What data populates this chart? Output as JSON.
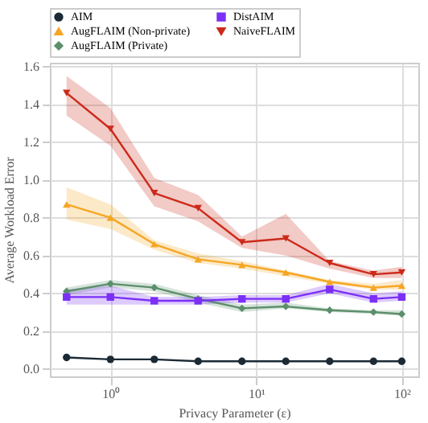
{
  "chart_data": {
    "type": "line",
    "xlabel": "Privacy Parameter (ε)",
    "ylabel": "Average Workload Error",
    "x": [
      0.5,
      1,
      2,
      4,
      8,
      16,
      32,
      64,
      100
    ],
    "series": [
      {
        "name": "AIM",
        "color": "#1b2a35",
        "marker": "circle",
        "values": [
          0.06,
          0.05,
          0.05,
          0.04,
          0.04,
          0.04,
          0.04,
          0.04,
          0.04
        ]
      },
      {
        "name": "AugFLAIM (Non-private)",
        "color": "#f5a623",
        "marker": "triangle",
        "values": [
          0.87,
          0.8,
          0.66,
          0.58,
          0.55,
          0.51,
          0.46,
          0.43,
          0.44
        ],
        "lower": [
          0.79,
          0.74,
          0.63,
          0.56,
          0.53,
          0.49,
          0.45,
          0.42,
          0.42
        ],
        "upper": [
          0.96,
          0.87,
          0.68,
          0.61,
          0.57,
          0.52,
          0.47,
          0.45,
          0.47
        ]
      },
      {
        "name": "AugFLAIM (Private)",
        "color": "#5b8f6b",
        "marker": "diamond",
        "values": [
          0.41,
          0.45,
          0.43,
          0.37,
          0.32,
          0.33,
          0.31,
          0.3,
          0.29
        ],
        "lower": [
          0.39,
          0.43,
          0.41,
          0.35,
          0.3,
          0.32,
          0.3,
          0.29,
          0.28
        ],
        "upper": [
          0.43,
          0.47,
          0.45,
          0.39,
          0.34,
          0.35,
          0.32,
          0.31,
          0.31
        ]
      },
      {
        "name": "DistAIM",
        "color": "#7b2ff7",
        "marker": "square",
        "values": [
          0.38,
          0.38,
          0.36,
          0.36,
          0.37,
          0.37,
          0.42,
          0.37,
          0.38
        ],
        "lower": [
          0.34,
          0.34,
          0.34,
          0.34,
          0.35,
          0.35,
          0.4,
          0.35,
          0.36
        ],
        "upper": [
          0.42,
          0.44,
          0.38,
          0.38,
          0.39,
          0.39,
          0.45,
          0.4,
          0.41
        ]
      },
      {
        "name": "NaiveFLAIM",
        "color": "#cc2a1a",
        "marker": "triangle-down",
        "values": [
          1.46,
          1.27,
          0.93,
          0.85,
          0.67,
          0.69,
          0.56,
          0.5,
          0.51
        ],
        "lower": [
          1.34,
          1.18,
          0.86,
          0.78,
          0.64,
          0.6,
          0.53,
          0.48,
          0.48
        ],
        "upper": [
          1.55,
          1.38,
          1.01,
          0.92,
          0.7,
          0.82,
          0.57,
          0.52,
          0.54
        ]
      }
    ],
    "log": "x",
    "xlim": [
      0.384,
      130
    ],
    "xticks": [
      {
        "value": 1,
        "label": "10⁰"
      },
      {
        "value": 10,
        "label": "10¹"
      },
      {
        "value": 100,
        "label": "10²"
      }
    ],
    "ylim": [
      -0.04,
      1.62
    ],
    "yticks": [
      {
        "value": 0,
        "label": "0.0"
      },
      {
        "value": 0.2,
        "label": "0.2"
      },
      {
        "value": 0.4,
        "label": "0.4"
      },
      {
        "value": 0.6,
        "label": "0.6"
      },
      {
        "value": 0.8,
        "label": "0.8"
      },
      {
        "value": 1.0,
        "label": "1.0"
      },
      {
        "value": 1.2,
        "label": "1.2"
      },
      {
        "value": 1.4,
        "label": "1.4"
      },
      {
        "value": 1.6,
        "label": "1.6"
      }
    ],
    "grid": true,
    "legend": "top",
    "line_style": "solid"
  }
}
